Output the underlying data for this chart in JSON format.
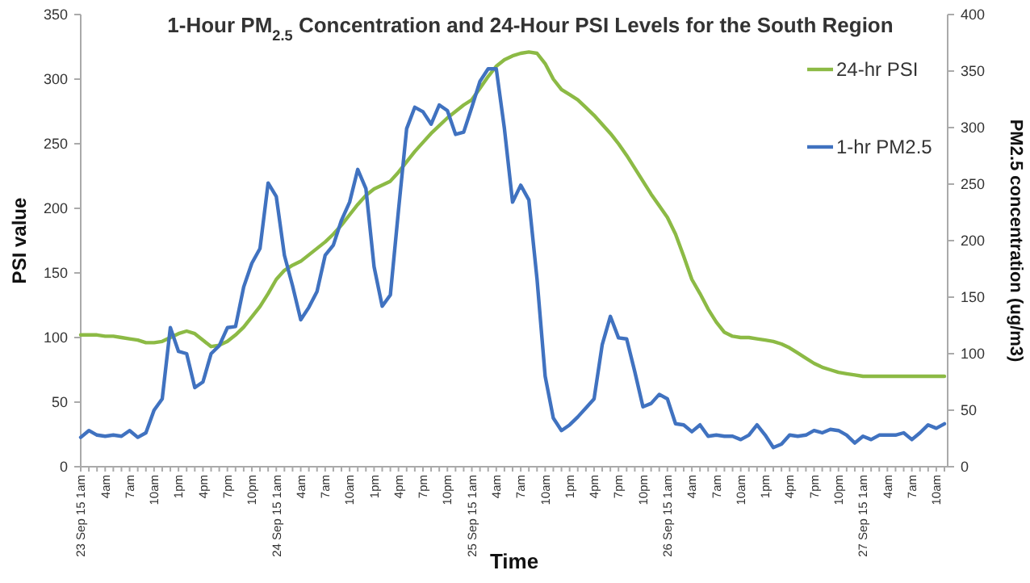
{
  "chart_data": {
    "type": "line",
    "title": "1-Hour PM$_{2.5}$ Concentration and 24-Hour PSI Levels for the South Region",
    "xlabel": "Time",
    "ylabel": "PSI value",
    "y2label": "PM2.5 concentration (ug/m3)",
    "categories": [
      "23 Sep 15 1am",
      null,
      null,
      "4am",
      null,
      null,
      "7am",
      null,
      null,
      "10am",
      null,
      null,
      "1pm",
      null,
      null,
      "4pm",
      null,
      null,
      "7pm",
      null,
      null,
      "10pm",
      null,
      null,
      "24 Sep 15 1am",
      null,
      null,
      "4am",
      null,
      null,
      "7am",
      null,
      null,
      "10am",
      null,
      null,
      "1pm",
      null,
      null,
      "4pm",
      null,
      null,
      "7pm",
      null,
      null,
      "10pm",
      null,
      null,
      "25 Sep 15 1am",
      null,
      null,
      "4am",
      null,
      null,
      "7am",
      null,
      null,
      "10am",
      null,
      null,
      "1pm",
      null,
      null,
      "4pm",
      null,
      null,
      "7pm",
      null,
      null,
      "10pm",
      null,
      null,
      "26 Sep 15 1am",
      null,
      null,
      "4am",
      null,
      null,
      "7am",
      null,
      null,
      "10am",
      null,
      null,
      "1pm",
      null,
      null,
      "4pm",
      null,
      null,
      "7pm",
      null,
      null,
      "10pm",
      null,
      null,
      "27 Sep 15 1am",
      null,
      null,
      "4am",
      null,
      null,
      "7am",
      null,
      null,
      "10am",
      null
    ],
    "series": [
      {
        "name": "24-hr PSI",
        "color": "#8cba45",
        "values": [
          102,
          102,
          102,
          101,
          101,
          100,
          99,
          98,
          96,
          96,
          97,
          100,
          103,
          105,
          103,
          98,
          93,
          94,
          97,
          102,
          108,
          116,
          124,
          134,
          145,
          152,
          156,
          159,
          164,
          169,
          174,
          180,
          187,
          195,
          203,
          210,
          215,
          218,
          221,
          228,
          236,
          244,
          251,
          258,
          264,
          270,
          275,
          280,
          284,
          293,
          302,
          310,
          315,
          318,
          320,
          321,
          320,
          312,
          300,
          292,
          288,
          284,
          278,
          272,
          265,
          258,
          250,
          241,
          231,
          221,
          211,
          202,
          193,
          180,
          163,
          145,
          134,
          122,
          112,
          104,
          101,
          100,
          100,
          99,
          98,
          97,
          95,
          92,
          88,
          84,
          80,
          77,
          75,
          73,
          72,
          71,
          70,
          70,
          70,
          70,
          70,
          70,
          70,
          70,
          70,
          70,
          70
        ]
      },
      {
        "name": "1-hr PM2.5",
        "color": "#4072c0",
        "axis": "y2",
        "values": [
          26,
          32,
          28,
          27,
          28,
          27,
          32,
          26,
          30,
          50,
          60,
          123,
          102,
          100,
          70,
          75,
          100,
          107,
          123,
          124,
          159,
          180,
          193,
          251,
          239,
          187,
          160,
          130,
          141,
          155,
          187,
          196,
          218,
          234,
          263,
          246,
          177,
          142,
          152,
          227,
          299,
          318,
          314,
          303,
          320,
          315,
          294,
          296,
          318,
          341,
          352,
          352,
          299,
          234,
          249,
          236,
          166,
          80,
          43,
          32,
          37,
          44,
          52,
          60,
          108,
          133,
          114,
          113,
          84,
          53,
          56,
          64,
          60,
          38,
          37,
          31,
          37,
          27,
          28,
          27,
          27,
          24,
          28,
          37,
          28,
          17,
          20,
          28,
          27,
          28,
          32,
          30,
          33,
          32,
          28,
          21,
          27,
          24,
          28,
          28,
          28,
          30,
          24,
          30,
          37,
          34,
          38
        ]
      }
    ],
    "ylim": [
      0,
      350
    ],
    "yticks": [
      0,
      50,
      100,
      150,
      200,
      250,
      300,
      350
    ],
    "y2lim": [
      0,
      400
    ],
    "y2ticks": [
      0,
      50,
      100,
      150,
      200,
      250,
      300,
      350,
      400
    ],
    "grid": false,
    "legend": "top right",
    "line_style": "solid",
    "marker": "none"
  }
}
